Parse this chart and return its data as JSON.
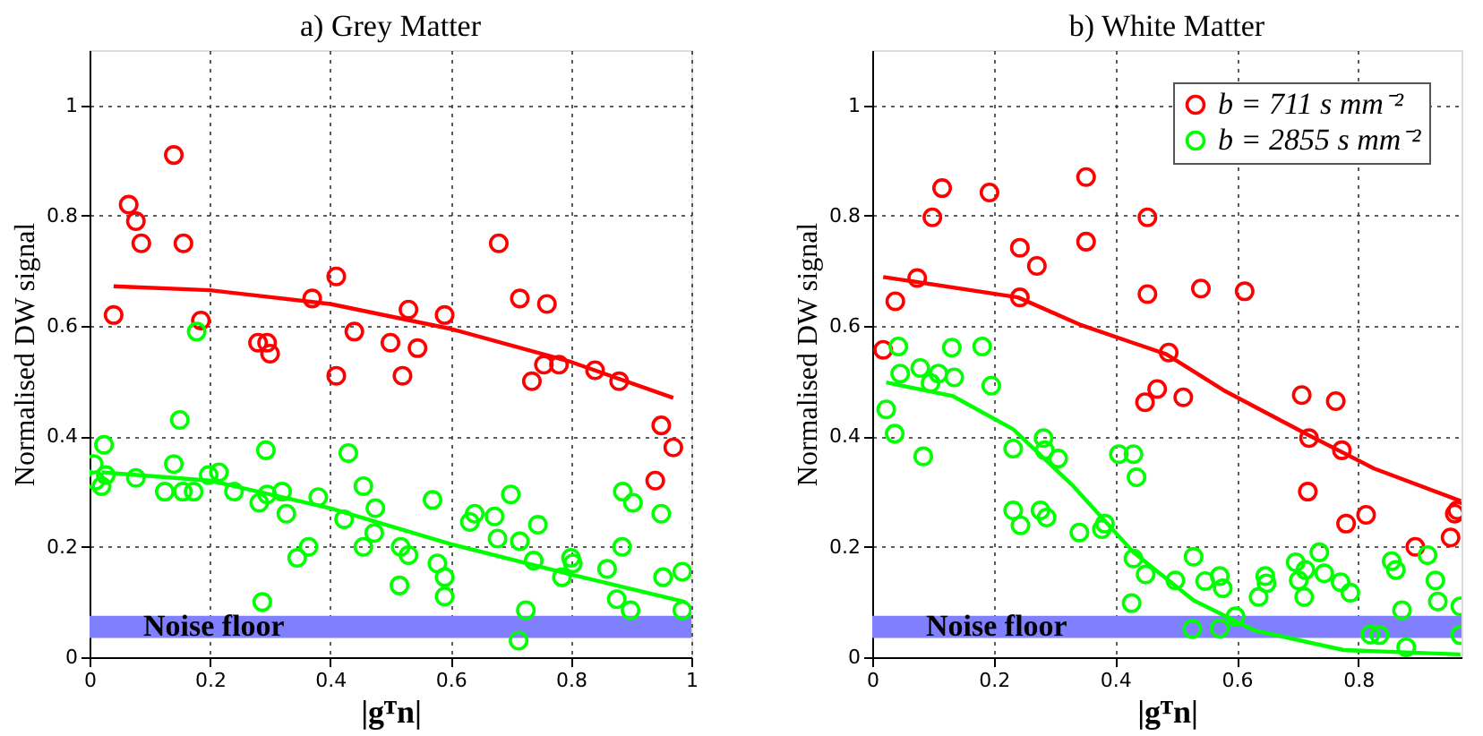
{
  "chart_data": [
    {
      "type": "scatter",
      "title": "a) Grey Matter",
      "xlabel": "|gᵀn|",
      "ylabel": "Normalised DW signal",
      "xlim": [
        0,
        1
      ],
      "ylim": [
        0,
        1.1
      ],
      "xticks": [
        0,
        0.2,
        0.4,
        0.6,
        0.8,
        1
      ],
      "yticks": [
        0,
        0.2,
        0.4,
        0.6,
        0.8,
        1
      ],
      "grid": true,
      "marker": "circle",
      "bands": [
        {
          "axis": "y",
          "from": 0.035,
          "to": 0.075,
          "label": "Noise floor",
          "color": "#8080ff"
        }
      ],
      "series": [
        {
          "color": "#ff0000",
          "x": [
            0.04,
            0.065,
            0.077,
            0.086,
            0.14,
            0.156,
            0.185,
            0.28,
            0.295,
            0.3,
            0.37,
            0.41,
            0.41,
            0.44,
            0.5,
            0.52,
            0.53,
            0.545,
            0.59,
            0.68,
            0.715,
            0.76,
            0.735,
            0.755,
            0.78,
            0.84,
            0.88,
            0.95,
            0.94,
            0.97
          ],
          "values": [
            0.62,
            0.82,
            0.79,
            0.75,
            0.91,
            0.75,
            0.61,
            0.57,
            0.57,
            0.55,
            0.65,
            0.69,
            0.51,
            0.59,
            0.57,
            0.51,
            0.63,
            0.56,
            0.62,
            0.75,
            0.65,
            0.64,
            0.5,
            0.53,
            0.53,
            0.52,
            0.5,
            0.42,
            0.32,
            0.38
          ]
        },
        {
          "color": "#00ff00",
          "x": [
            0.007,
            0.01,
            0.02,
            0.024,
            0.027,
            0.077,
            0.125,
            0.14,
            0.15,
            0.155,
            0.173,
            0.178,
            0.198,
            0.215,
            0.24,
            0.282,
            0.293,
            0.295,
            0.32,
            0.327,
            0.345,
            0.364,
            0.38,
            0.423,
            0.43,
            0.455,
            0.455,
            0.473,
            0.475,
            0.287,
            0.517,
            0.53,
            0.515,
            0.57,
            0.578,
            0.59,
            0.59,
            0.632,
            0.64,
            0.673,
            0.678,
            0.7,
            0.715,
            0.725,
            0.713,
            0.745,
            0.738,
            0.785,
            0.8,
            0.803,
            0.86,
            0.876,
            0.886,
            0.885,
            0.903,
            0.899,
            0.95,
            0.953,
            0.985,
            0.985
          ],
          "values": [
            0.35,
            0.32,
            0.31,
            0.385,
            0.33,
            0.325,
            0.3,
            0.35,
            0.43,
            0.3,
            0.3,
            0.59,
            0.33,
            0.335,
            0.3,
            0.28,
            0.375,
            0.295,
            0.3,
            0.26,
            0.18,
            0.2,
            0.29,
            0.25,
            0.37,
            0.31,
            0.2,
            0.225,
            0.27,
            0.1,
            0.2,
            0.185,
            0.13,
            0.285,
            0.17,
            0.145,
            0.11,
            0.245,
            0.26,
            0.255,
            0.215,
            0.295,
            0.21,
            0.085,
            0.03,
            0.24,
            0.175,
            0.145,
            0.18,
            0.17,
            0.16,
            0.105,
            0.3,
            0.2,
            0.28,
            0.085,
            0.26,
            0.145,
            0.155,
            0.085
          ]
        },
        {
          "type": "line",
          "marker": "none",
          "color": "#ff0000",
          "x": [
            0.04,
            0.2,
            0.4,
            0.6,
            0.8,
            0.97
          ],
          "values": [
            0.672,
            0.665,
            0.64,
            0.595,
            0.535,
            0.47
          ]
        },
        {
          "type": "line",
          "marker": "none",
          "color": "#00ff00",
          "x": [
            0.02,
            0.2,
            0.4,
            0.6,
            0.8,
            0.99
          ],
          "values": [
            0.335,
            0.32,
            0.27,
            0.205,
            0.15,
            0.1
          ]
        }
      ]
    },
    {
      "type": "scatter",
      "title": "b) White Matter",
      "xlabel": "|gᵀn|",
      "ylabel": "Normalised DW signal",
      "xlim": [
        0,
        0.97
      ],
      "ylim": [
        0,
        1.1
      ],
      "xticks": [
        0,
        0.2,
        0.4,
        0.6,
        0.8
      ],
      "yticks": [
        0,
        0.2,
        0.4,
        0.6,
        0.8,
        1
      ],
      "grid": true,
      "marker": "circle",
      "legend": "top right",
      "bands": [
        {
          "axis": "y",
          "from": 0.035,
          "to": 0.075,
          "label": "Noise floor",
          "color": "#8080ff"
        }
      ],
      "series": [
        {
          "name": "b = 711 s mm⁻²",
          "color": "#ff0000",
          "x": [
            0.018,
            0.038,
            0.074,
            0.099,
            0.115,
            0.193,
            0.243,
            0.243,
            0.271,
            0.352,
            0.352,
            0.453,
            0.453,
            0.449,
            0.469,
            0.488,
            0.512,
            0.541,
            0.613,
            0.707,
            0.719,
            0.717,
            0.763,
            0.773,
            0.78,
            0.813,
            0.894,
            0.952,
            0.959,
            0.963
          ],
          "values": [
            0.557,
            0.645,
            0.687,
            0.797,
            0.85,
            0.842,
            0.742,
            0.652,
            0.709,
            0.87,
            0.753,
            0.797,
            0.658,
            0.462,
            0.486,
            0.552,
            0.471,
            0.668,
            0.663,
            0.475,
            0.397,
            0.3,
            0.464,
            0.375,
            0.242,
            0.258,
            0.2,
            0.217,
            0.26,
            0.266
          ]
        },
        {
          "name": "b = 2855 s mm⁻²",
          "color": "#00ff00",
          "x": [
            0.023,
            0.037,
            0.043,
            0.046,
            0.079,
            0.084,
            0.096,
            0.109,
            0.131,
            0.135,
            0.181,
            0.196,
            0.232,
            0.232,
            0.244,
            0.277,
            0.282,
            0.287,
            0.284,
            0.306,
            0.341,
            0.378,
            0.383,
            0.406,
            0.43,
            0.435,
            0.43,
            0.45,
            0.427,
            0.499,
            0.529,
            0.527,
            0.548,
            0.572,
            0.577,
            0.572,
            0.598,
            0.636,
            0.647,
            0.649,
            0.697,
            0.702,
            0.711,
            0.713,
            0.736,
            0.744,
            0.771,
            0.787,
            0.82,
            0.835,
            0.855,
            0.862,
            0.872,
            0.879,
            0.914,
            0.927,
            0.931,
            0.968,
            0.968
          ],
          "values": [
            0.449,
            0.405,
            0.563,
            0.514,
            0.524,
            0.364,
            0.497,
            0.514,
            0.561,
            0.507,
            0.563,
            0.492,
            0.378,
            0.266,
            0.239,
            0.266,
            0.397,
            0.253,
            0.375,
            0.36,
            0.226,
            0.232,
            0.242,
            0.368,
            0.368,
            0.326,
            0.179,
            0.15,
            0.098,
            0.139,
            0.182,
            0.051,
            0.138,
            0.147,
            0.125,
            0.052,
            0.074,
            0.109,
            0.147,
            0.134,
            0.172,
            0.139,
            0.109,
            0.158,
            0.19,
            0.152,
            0.136,
            0.117,
            0.041,
            0.04,
            0.174,
            0.158,
            0.085,
            0.018,
            0.185,
            0.139,
            0.101,
            0.092,
            0.04
          ]
        },
        {
          "type": "line",
          "marker": "none",
          "color": "#ff0000",
          "x": [
            0.018,
            0.24,
            0.341,
            0.484,
            0.578,
            0.719,
            0.826,
            0.969
          ],
          "values": [
            0.689,
            0.652,
            0.603,
            0.549,
            0.484,
            0.402,
            0.342,
            0.283
          ]
        },
        {
          "type": "line",
          "marker": "none",
          "color": "#00ff00",
          "x": [
            0.023,
            0.133,
            0.232,
            0.331,
            0.43,
            0.529,
            0.628,
            0.776,
            0.968
          ],
          "values": [
            0.498,
            0.473,
            0.413,
            0.31,
            0.19,
            0.103,
            0.049,
            0.013,
            0.005
          ]
        }
      ]
    }
  ]
}
